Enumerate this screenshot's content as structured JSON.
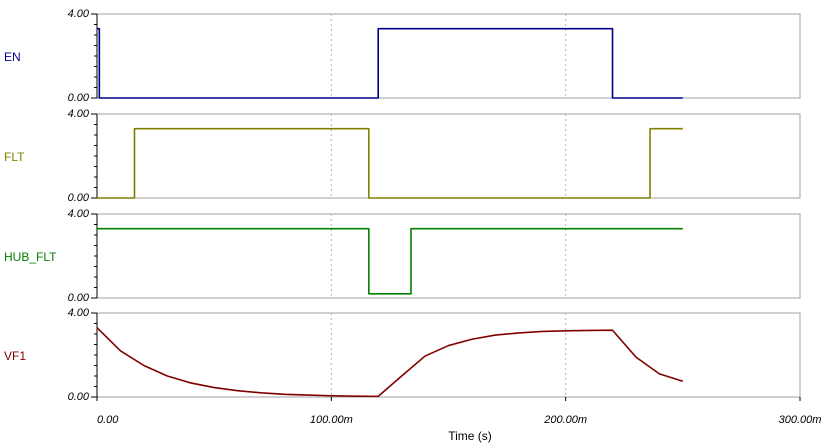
{
  "chart_data": {
    "type": "line",
    "xlabel": "Time (s)",
    "x_ticks": [
      "0.00",
      "100.00m",
      "200.00m",
      "300.00m"
    ],
    "xlim": [
      0,
      0.3
    ],
    "grid": true,
    "panels": [
      {
        "name": "EN",
        "color": "#00008b",
        "ylim": [
          0,
          4
        ],
        "y_ticks": [
          "0.00",
          "4.00"
        ],
        "x": [
          0,
          0.001,
          0.001,
          0.12,
          0.12,
          0.22,
          0.22,
          0.25
        ],
        "y": [
          3.3,
          3.3,
          0,
          0,
          3.3,
          3.3,
          0,
          0
        ]
      },
      {
        "name": "FLT",
        "color": "#808000",
        "ylim": [
          0,
          4
        ],
        "y_ticks": [
          "0.00",
          "4.00"
        ],
        "x": [
          0,
          0.016,
          0.016,
          0.116,
          0.116,
          0.236,
          0.236,
          0.25
        ],
        "y": [
          0,
          0,
          3.3,
          3.3,
          0,
          0,
          3.3,
          3.3
        ]
      },
      {
        "name": "HUB_FLT",
        "color": "#008000",
        "ylim": [
          0,
          4
        ],
        "y_ticks": [
          "0.00",
          "4.00"
        ],
        "x": [
          0,
          0.116,
          0.116,
          0.134,
          0.134,
          0.25
        ],
        "y": [
          3.3,
          3.3,
          0.2,
          0.2,
          3.3,
          3.3
        ]
      },
      {
        "name": "VF1",
        "color": "#800000",
        "ylim": [
          0,
          4
        ],
        "y_ticks": [
          "0.00",
          "4.00"
        ],
        "x": [
          0,
          0.01,
          0.02,
          0.03,
          0.04,
          0.05,
          0.06,
          0.07,
          0.08,
          0.09,
          0.1,
          0.11,
          0.12,
          0.13,
          0.14,
          0.15,
          0.16,
          0.17,
          0.18,
          0.19,
          0.2,
          0.21,
          0.22,
          0.23,
          0.24,
          0.25
        ],
        "y": [
          3.3,
          2.2,
          1.5,
          1.0,
          0.67,
          0.45,
          0.3,
          0.2,
          0.13,
          0.09,
          0.06,
          0.04,
          0.03,
          1.0,
          1.95,
          2.45,
          2.75,
          2.95,
          3.05,
          3.12,
          3.15,
          3.17,
          3.18,
          1.9,
          1.1,
          0.75
        ]
      }
    ]
  }
}
